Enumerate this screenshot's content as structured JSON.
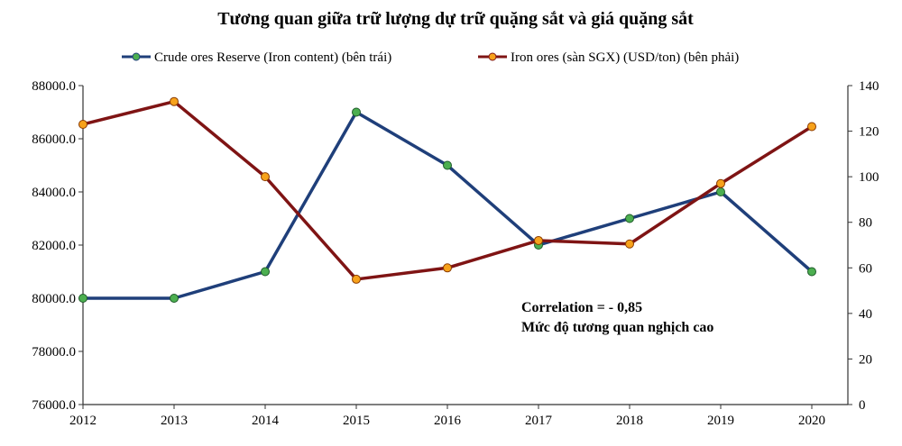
{
  "chart_data": {
    "type": "line",
    "title": "Tương quan giữa trữ lượng dự trữ quặng sắt và giá quặng sắt",
    "x": [
      "2012",
      "2013",
      "2014",
      "2015",
      "2016",
      "2017",
      "2018",
      "2019",
      "2020"
    ],
    "series": [
      {
        "name": "Crude ores Reserve (Iron content) (bên trái)",
        "axis": "left",
        "color": "#1F3F7A",
        "marker_color": "#4CAF50",
        "values": [
          80000,
          80000,
          81000,
          87000,
          85000,
          82000,
          83000,
          84000,
          81000
        ]
      },
      {
        "name": "Iron ores (sàn SGX) (USD/ton) (bên phải)",
        "axis": "right",
        "color": "#7F1414",
        "marker_color": "#F7A21B",
        "values": [
          123,
          133,
          100,
          55,
          60,
          72,
          70.5,
          97,
          122
        ]
      }
    ],
    "left_axis": {
      "ylim": [
        76000,
        88000
      ],
      "ticks": [
        "88000.0",
        "86000.0",
        "84000.0",
        "82000.0",
        "80000.0",
        "78000.0",
        "76000.0"
      ]
    },
    "right_axis": {
      "ylim": [
        0,
        140
      ],
      "ticks": [
        "140",
        "120",
        "100",
        "80",
        "60",
        "40",
        "20",
        "0"
      ]
    },
    "grid": false,
    "legend_position": "top",
    "annotations": [
      "Correlation  = - 0,85",
      "Mức độ tương quan  nghịch  cao"
    ]
  }
}
